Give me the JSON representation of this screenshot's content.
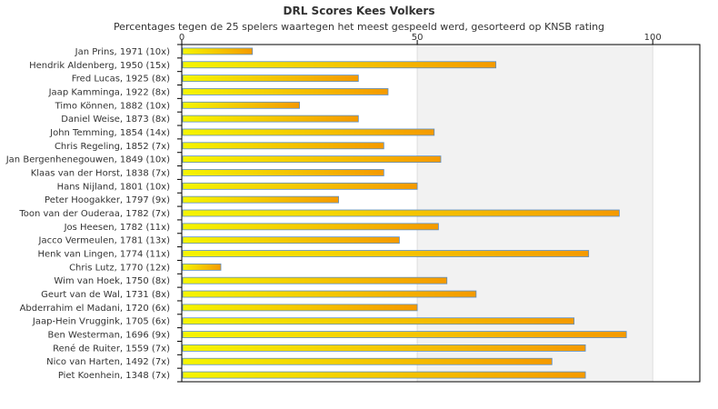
{
  "chart_data": {
    "type": "bar",
    "orientation": "horizontal",
    "title": "DRL Scores Kees Volkers",
    "subtitle": "Percentages tegen de 25 spelers waartegen het meest gespeeld werd, gesorteerd op KNSB rating",
    "xlim": [
      0,
      110
    ],
    "xticks": [
      0,
      50,
      100
    ],
    "grid": true,
    "colors": {
      "bar_start": "#f5f500",
      "bar_end": "#f59a00",
      "bar_stroke": "#5b8fc8",
      "band": "#f2f2f2",
      "plot_border": "#000000",
      "grid_line": "#dddddd"
    },
    "categories": [
      "Jan Prins, 1971 (10x)",
      "Hendrik Aldenberg, 1950 (15x)",
      "Fred Lucas, 1925 (8x)",
      "Jaap Kamminga, 1922 (8x)",
      "Timo Können, 1882 (10x)",
      "Daniel Weise, 1873 (8x)",
      "John Temming, 1854 (14x)",
      "Chris Regeling, 1852 (7x)",
      "Jan Bergenhenegouwen, 1849 (10x)",
      "Klaas van der Horst, 1838 (7x)",
      "Hans Nijland, 1801 (10x)",
      "Peter Hoogakker, 1797 (9x)",
      "Toon van der Ouderaa, 1782 (7x)",
      "Jos Heesen, 1782 (11x)",
      "Jacco Vermeulen, 1781 (13x)",
      "Henk van Lingen, 1774 (11x)",
      "Chris Lutz, 1770 (12x)",
      "Wim van Hoek, 1750 (8x)",
      "Geurt van de Wal, 1731 (8x)",
      "Abderrahim el Madani, 1720 (6x)",
      "Jaap-Hein Vruggink, 1705 (6x)",
      "Ben Westerman, 1696 (9x)",
      "René de Ruiter, 1559 (7x)",
      "Nico van Harten, 1492 (7x)",
      "Piet Koenhein, 1348 (7x)"
    ],
    "values": [
      15,
      66.7,
      37.5,
      43.8,
      25,
      37.5,
      53.6,
      42.9,
      55,
      42.9,
      50,
      33.3,
      92.9,
      54.5,
      46.2,
      86.4,
      8.3,
      56.3,
      62.5,
      50,
      83.3,
      94.4,
      85.7,
      78.6,
      85.7
    ]
  }
}
